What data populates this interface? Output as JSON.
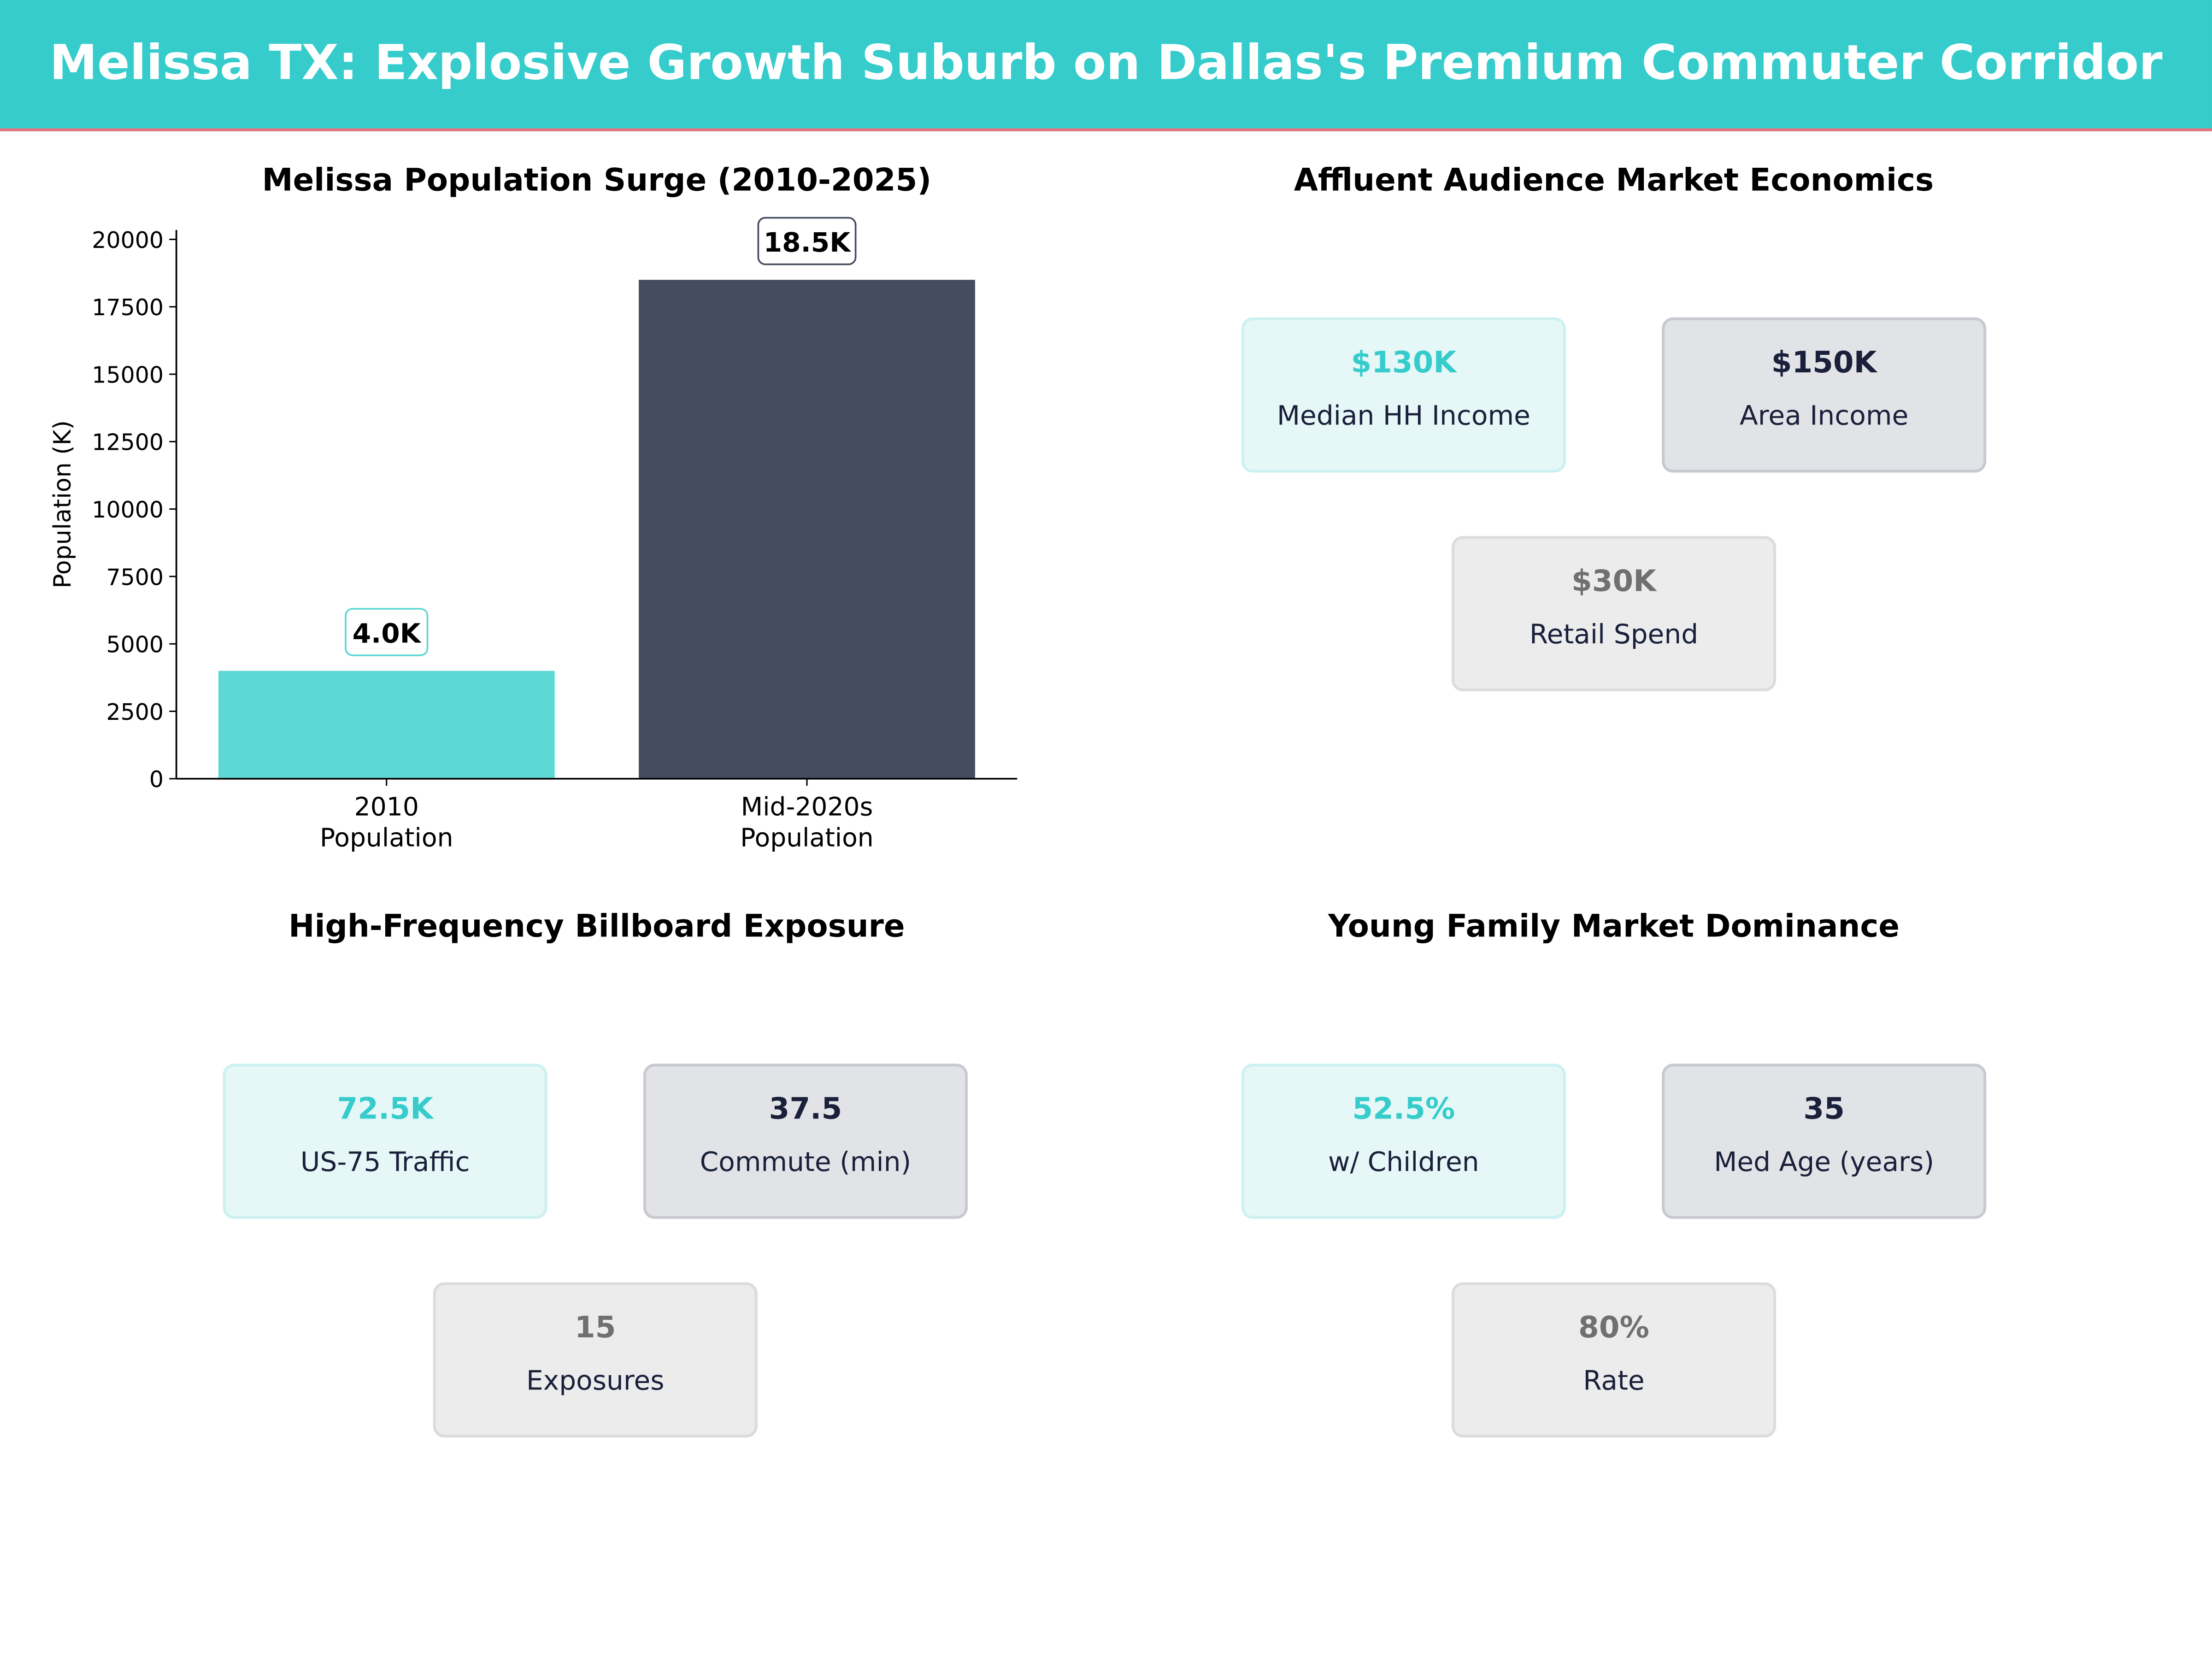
{
  "header": {
    "title": "Melissa TX: Explosive Growth Suburb on Dallas's Premium Commuter Corridor",
    "bg_color": "#36CCCC",
    "accent_line": "#E8707E"
  },
  "chart_data": {
    "type": "bar",
    "title": "Melissa Population Surge (2010-2025)",
    "xlabel": "",
    "ylabel": "Population (K)",
    "categories": [
      "2010\nPopulation",
      "Mid-2020s\nPopulation"
    ],
    "category_lines": [
      [
        "2010",
        "Population"
      ],
      [
        "Mid-2020s",
        "Population"
      ]
    ],
    "values": [
      4000,
      18500
    ],
    "data_labels": [
      "4.0K",
      "18.5K"
    ],
    "colors": [
      "#5DD8D4",
      "#454B60"
    ],
    "ylim": [
      0,
      20350
    ],
    "yticks": [
      0,
      2500,
      5000,
      7500,
      10000,
      12500,
      15000,
      17500,
      20000
    ],
    "grid": false
  },
  "panels": [
    {
      "title": "Affluent Audience Market Economics",
      "cards": [
        {
          "value": "$130K",
          "label": "Median HH Income"
        },
        {
          "value": "$150K",
          "label": "Area Income"
        },
        {
          "value": "$30K",
          "label": "Retail Spend"
        }
      ]
    },
    {
      "title": "High-Frequency Billboard Exposure",
      "cards": [
        {
          "value": "72.5K",
          "label": "US-75 Traffic"
        },
        {
          "value": "37.5",
          "label": "Commute (min)"
        },
        {
          "value": "15",
          "label": "Exposures"
        }
      ]
    },
    {
      "title": "Young Family Market Dominance",
      "cards": [
        {
          "value": "52.5%",
          "label": "w/ Children"
        },
        {
          "value": "35",
          "label": "Med Age (years)"
        },
        {
          "value": "80%",
          "label": "Rate"
        }
      ]
    }
  ]
}
